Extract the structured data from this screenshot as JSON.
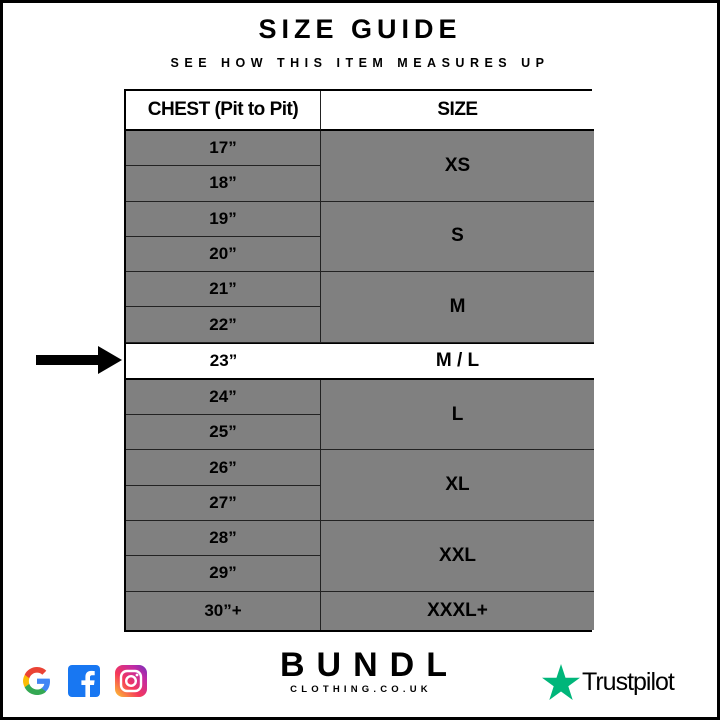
{
  "title": "SIZE GUIDE",
  "subtitle": "SEE HOW THIS ITEM MEASURES UP",
  "table": {
    "headers": [
      "CHEST (Pit to Pit)",
      "SIZE"
    ],
    "chest": [
      "17”",
      "18”",
      "19”",
      "20”",
      "21”",
      "22”",
      "23”",
      "24”",
      "25”",
      "26”",
      "27”",
      "28”",
      "29”",
      "30”+"
    ],
    "sizes": [
      "XS",
      "S",
      "M",
      "M / L",
      "L",
      "XL",
      "XXL",
      "XXXL+"
    ],
    "highlighted_row": "23”",
    "colors": {
      "row_fill": "#808080",
      "highlight_fill": "#ffffff"
    }
  },
  "brand": {
    "name": "BUNDL",
    "domain": "CLOTHING.CO.UK"
  },
  "icons": [
    "google-icon",
    "facebook-icon",
    "instagram-icon",
    "trustpilot-star-icon",
    "arrow-right-icon"
  ],
  "trustpilot": {
    "label": "Trustpilot",
    "color": "#00b67a"
  }
}
